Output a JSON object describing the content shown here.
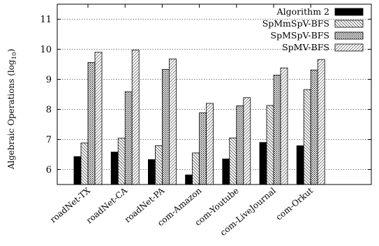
{
  "chart_data": {
    "type": "bar",
    "ylabel": "Algebraic Operations (log",
    "ylabel_sub": "10",
    "ylabel_close": ")",
    "ylim": [
      5.5,
      11.5
    ],
    "yticks": [
      6,
      7,
      8,
      9,
      10,
      11
    ],
    "grid": true,
    "legend_position": "top-right",
    "categories": [
      "roadNet-TX",
      "roadNet-CA",
      "roadNet-PA",
      "com-Amazon",
      "com-Youtube",
      "com-LiveJournal",
      "com-Orkut"
    ],
    "series": [
      {
        "name": "Algorithm 2",
        "pattern": "solid",
        "color": "#000000",
        "values": [
          6.43,
          6.58,
          6.33,
          5.82,
          6.35,
          6.9,
          6.79
        ]
      },
      {
        "name": "SpMmSpV-BFS",
        "pattern": "diag-dense",
        "values": [
          6.88,
          7.04,
          6.79,
          6.55,
          7.05,
          8.13,
          8.66
        ]
      },
      {
        "name": "SpMSpV-BFS",
        "pattern": "dots",
        "values": [
          9.56,
          8.59,
          9.33,
          7.89,
          8.12,
          9.14,
          9.31
        ]
      },
      {
        "name": "SpMV-BFS",
        "pattern": "diag-light",
        "values": [
          9.9,
          9.97,
          9.68,
          8.2,
          8.39,
          9.38,
          9.66
        ]
      }
    ]
  }
}
